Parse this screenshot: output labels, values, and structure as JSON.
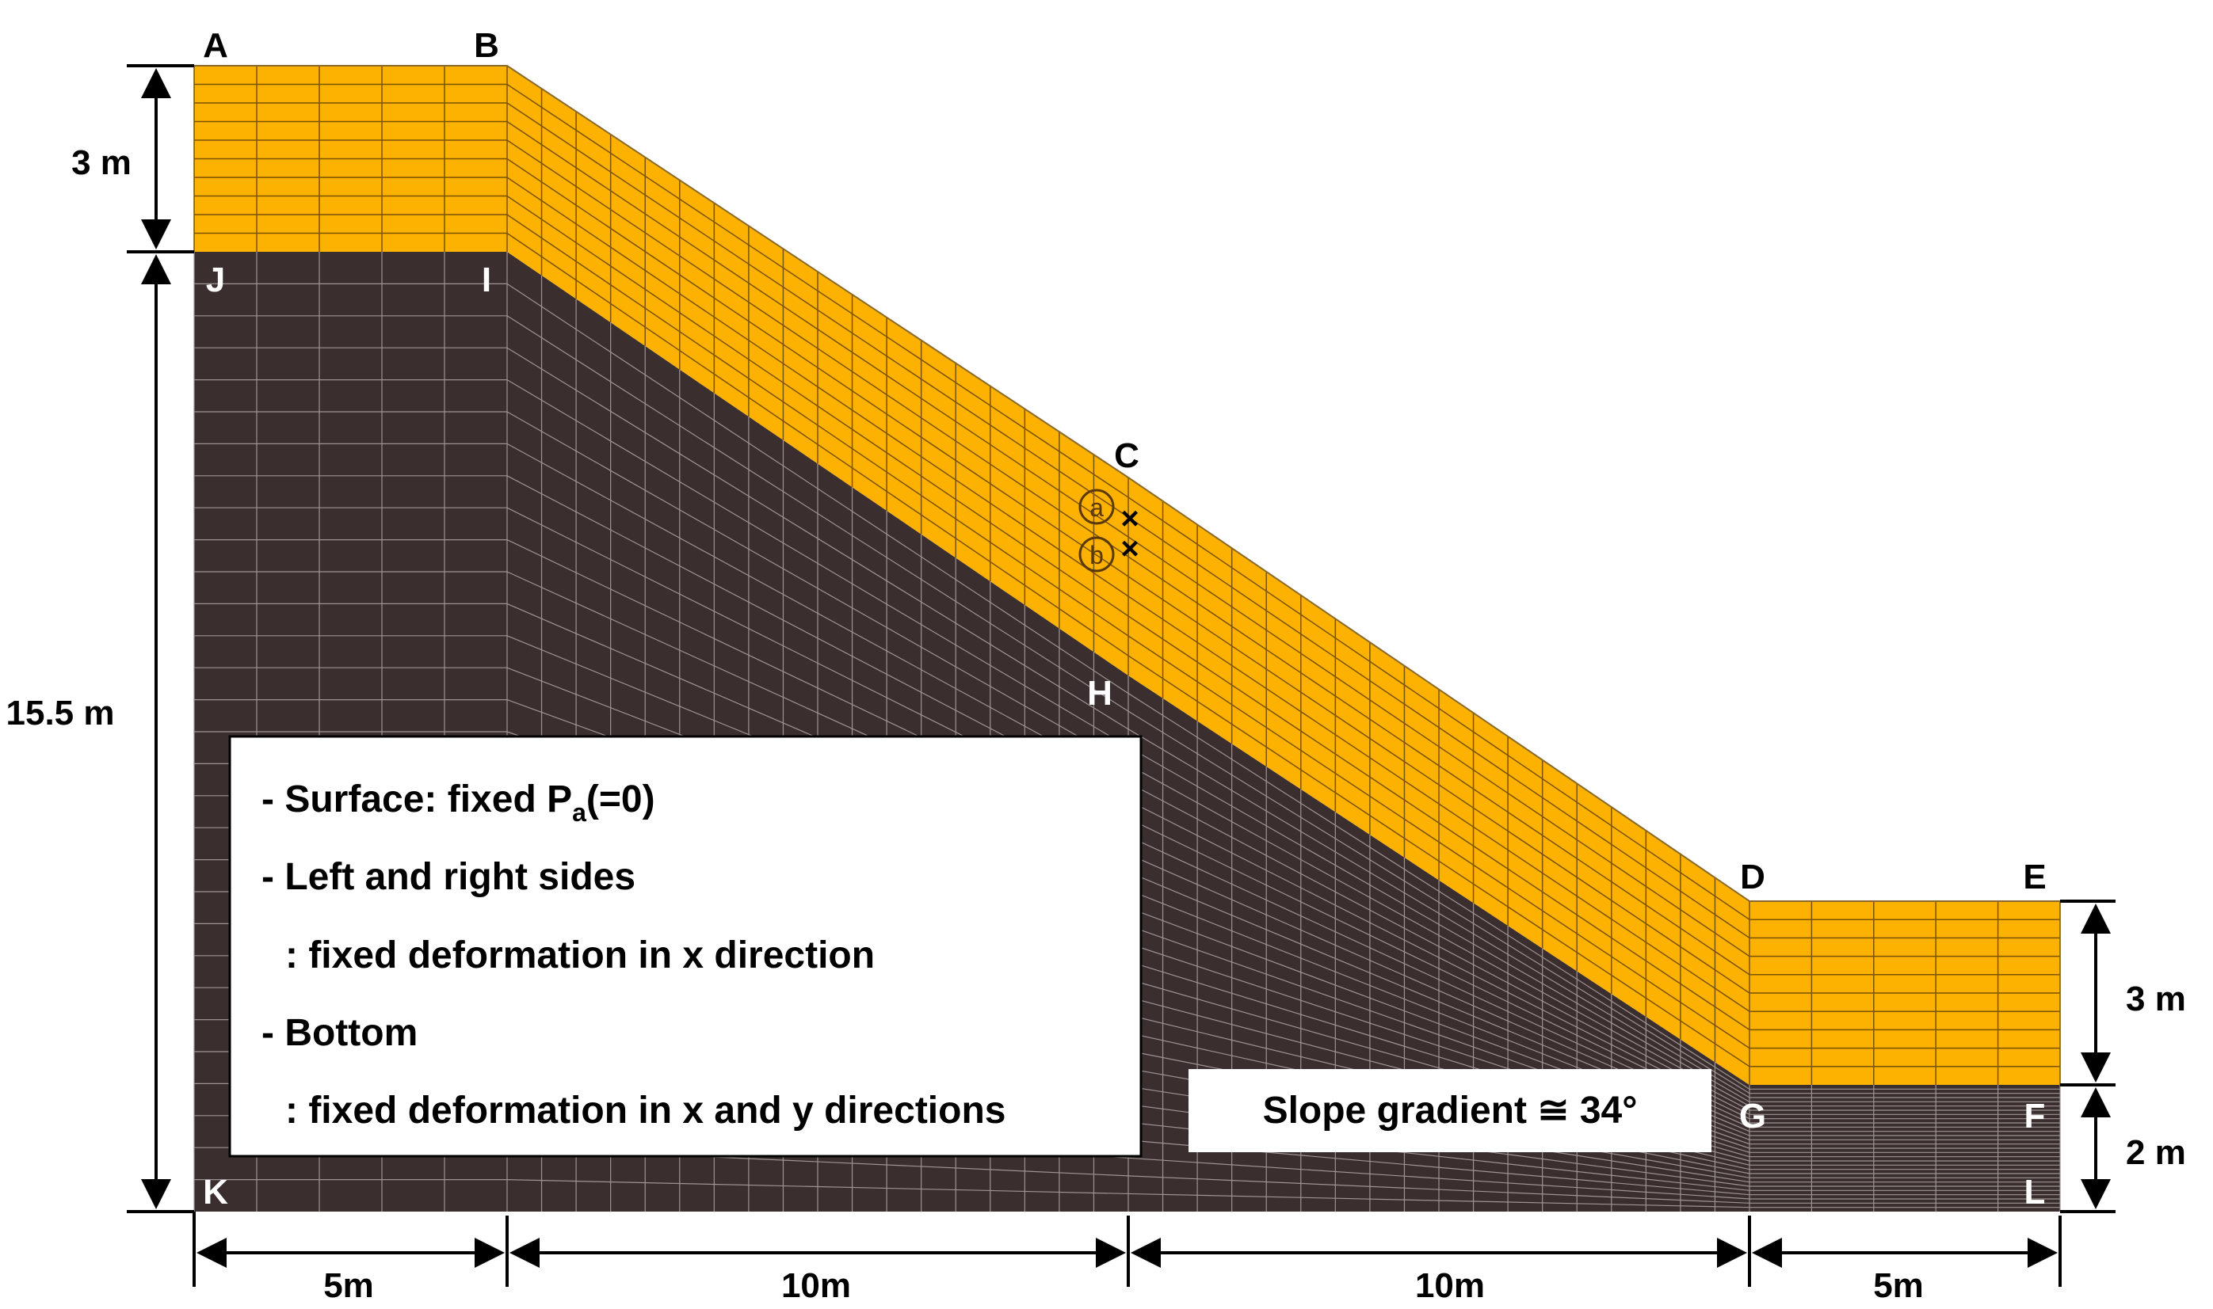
{
  "points": {
    "A": "A",
    "B": "B",
    "C": "C",
    "D": "D",
    "E": "E",
    "F": "F",
    "G": "G",
    "H": "H",
    "I": "I",
    "J": "J",
    "K": "K",
    "L": "L"
  },
  "markers": {
    "a": "a",
    "b": "b",
    "x": "×"
  },
  "dimensions": {
    "left_top": "3 m",
    "left_total": "15.5 m",
    "right_top": "3 m",
    "right_bottom": "2 m",
    "bottom": [
      "5m",
      "10m",
      "10m",
      "5m"
    ]
  },
  "legend": {
    "surface_prefix": "- Surface: fixed P",
    "surface_sub": "a",
    "surface_suffix": "(=0)",
    "sides": "- Left and right sides",
    "sides_detail": ": fixed deformation in x direction",
    "bottom": "- Bottom",
    "bottom_detail": ": fixed deformation in x and y directions"
  },
  "slope_label": "Slope gradient ≅ 34°",
  "colors": {
    "soil_layer": "#FDB100",
    "bedrock": "#3A2E2E",
    "mesh_on_soil": "#7A5200",
    "mesh_on_rock": "#9E9494",
    "text_on_dark": "#FFFFFF",
    "ink": "#000000"
  }
}
